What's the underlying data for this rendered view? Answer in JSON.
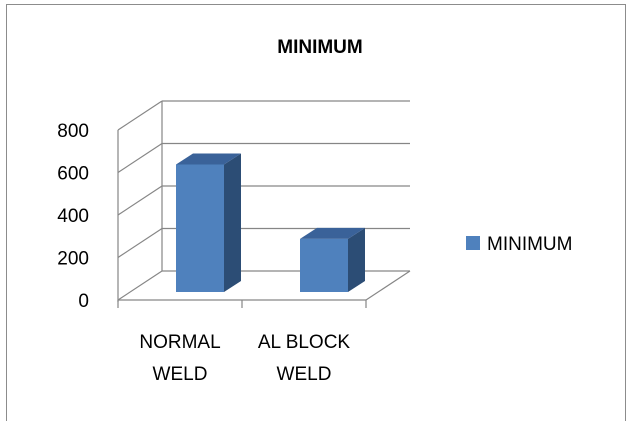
{
  "chart_data": {
    "type": "bar",
    "title": "MINIMUM",
    "categories": [
      "NORMAL WELD",
      "AL BLOCK WELD"
    ],
    "category_lines": [
      [
        "NORMAL",
        "WELD"
      ],
      [
        "AL BLOCK",
        "WELD"
      ]
    ],
    "series": [
      {
        "name": "MINIMUM",
        "values": [
          600,
          250
        ],
        "color": "#4f81bd"
      }
    ],
    "y_ticks": [
      "0",
      "200",
      "400",
      "600",
      "800"
    ],
    "ylim": [
      0,
      800
    ],
    "grid": true,
    "legend_position": "right",
    "style": "3d-clustered-column"
  }
}
